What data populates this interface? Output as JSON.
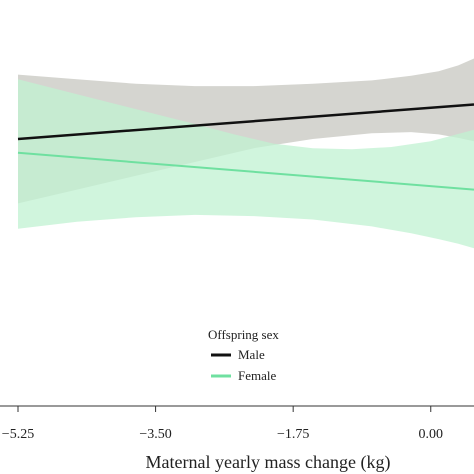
{
  "chart_data": {
    "type": "line",
    "title": "",
    "xlabel": "Maternal yearly mass change (kg)",
    "ylabel": "",
    "x_ticks": [
      "−5.25",
      "−3.50",
      "−1.75",
      "0.00"
    ],
    "x_tick_values": [
      -5.25,
      -3.5,
      -1.75,
      0.0
    ],
    "xlim": [
      -5.25,
      0.55
    ],
    "ylim": [
      0,
      1
    ],
    "grid": false,
    "legend": {
      "title": "Offspring sex",
      "placement": "bottom-center",
      "entries": [
        "Male",
        "Female"
      ]
    },
    "series": [
      {
        "name": "Male",
        "color": "#111111",
        "band_color": "#d5d5d0",
        "x": [
          -5.25,
          0.55
        ],
        "y": [
          0.7,
          0.85
        ],
        "upper": [
          [
            -5.25,
            0.98
          ],
          [
            -4.5,
            0.96
          ],
          [
            -3.75,
            0.94
          ],
          [
            -3.0,
            0.93
          ],
          [
            -2.25,
            0.93
          ],
          [
            -1.5,
            0.94
          ],
          [
            -0.75,
            0.955
          ],
          [
            -0.25,
            0.975
          ],
          [
            0.1,
            0.995
          ],
          [
            0.35,
            1.02
          ],
          [
            0.55,
            1.05
          ]
        ],
        "lower": [
          [
            -5.25,
            0.42
          ],
          [
            -4.5,
            0.48
          ],
          [
            -3.75,
            0.54
          ],
          [
            -3.0,
            0.6
          ],
          [
            -2.25,
            0.66
          ],
          [
            -1.5,
            0.7
          ],
          [
            -0.75,
            0.725
          ],
          [
            -0.25,
            0.73
          ],
          [
            0.1,
            0.72
          ],
          [
            0.35,
            0.705
          ],
          [
            0.55,
            0.69
          ]
        ]
      },
      {
        "name": "Female",
        "color": "#6fe0a0",
        "band_color": "#c0f2d2",
        "x": [
          -5.25,
          0.55
        ],
        "y": [
          0.64,
          0.48
        ],
        "upper": [
          [
            -5.25,
            0.96
          ],
          [
            -4.5,
            0.895
          ],
          [
            -3.75,
            0.83
          ],
          [
            -3.0,
            0.765
          ],
          [
            -2.5,
            0.72
          ],
          [
            -2.0,
            0.68
          ],
          [
            -1.5,
            0.66
          ],
          [
            -1.0,
            0.655
          ],
          [
            -0.5,
            0.665
          ],
          [
            0.0,
            0.69
          ],
          [
            0.55,
            0.74
          ]
        ],
        "lower": [
          [
            -5.25,
            0.31
          ],
          [
            -4.5,
            0.34
          ],
          [
            -3.75,
            0.36
          ],
          [
            -3.0,
            0.37
          ],
          [
            -2.25,
            0.365
          ],
          [
            -1.5,
            0.35
          ],
          [
            -0.75,
            0.32
          ],
          [
            -0.25,
            0.29
          ],
          [
            0.1,
            0.265
          ],
          [
            0.35,
            0.245
          ],
          [
            0.55,
            0.225
          ]
        ]
      }
    ]
  }
}
